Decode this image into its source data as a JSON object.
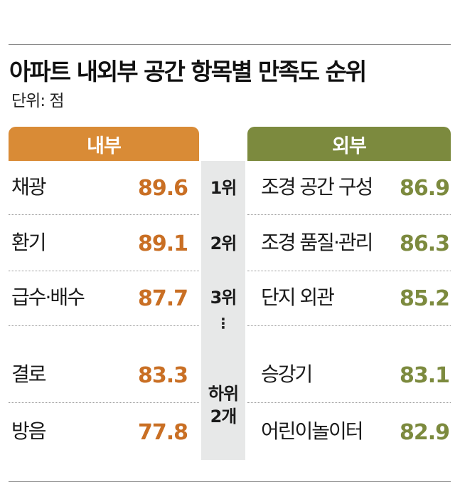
{
  "chart_data": {
    "type": "table",
    "title": "아파트 내외부 공간 항목별 만족도 순위",
    "subtitle": "단위: 점",
    "columns": {
      "inner": "내부",
      "outer": "외부"
    },
    "ranks": [
      "1위",
      "2위",
      "3위",
      "⋮",
      "하위\n2개"
    ],
    "inner_items": [
      {
        "label": "채광",
        "value": "89.6"
      },
      {
        "label": "환기",
        "value": "89.1"
      },
      {
        "label": "급수·배수",
        "value": "87.7"
      },
      {
        "label": "결로",
        "value": "83.3"
      },
      {
        "label": "방음",
        "value": "77.8"
      }
    ],
    "outer_items": [
      {
        "label": "조경 공간 구성",
        "value": "86.9"
      },
      {
        "label": "조경 품질·관리",
        "value": "86.3"
      },
      {
        "label": "단지 외관",
        "value": "85.2"
      },
      {
        "label": "승강기",
        "value": "83.1"
      },
      {
        "label": "어린이놀이터",
        "value": "82.9"
      }
    ],
    "colors": {
      "inner_header": "#d98b36",
      "inner_value": "#c96f24",
      "outer_header": "#7c8a3e",
      "outer_value": "#7c8a3e",
      "rank_column": "#e7e8e8"
    }
  }
}
